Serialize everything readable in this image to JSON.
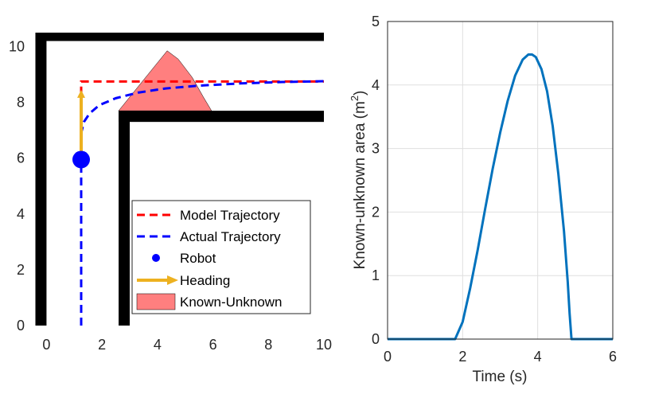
{
  "chart_data": [
    {
      "type": "line",
      "title": "",
      "xlabel": "",
      "ylabel": "",
      "xlim": [
        -0.5,
        10
      ],
      "ylim": [
        0,
        10.5
      ],
      "xticks": [
        "0",
        "2",
        "4",
        "6",
        "8",
        "10"
      ],
      "yticks": [
        "0",
        "2",
        "4",
        "6",
        "8",
        "10"
      ],
      "grid": false,
      "legend_position": "bottom-right",
      "walls": [
        {
          "name": "top-wall",
          "x": [
            -0.4,
            10
          ],
          "y": [
            10.2,
            10.5
          ]
        },
        {
          "name": "left-wall",
          "x": [
            -0.4,
            0
          ],
          "y": [
            0,
            10.5
          ]
        },
        {
          "name": "inner-top-wall",
          "x": [
            2.6,
            10
          ],
          "y": [
            7.3,
            7.7
          ]
        },
        {
          "name": "inner-left-wall",
          "x": [
            2.6,
            3.0
          ],
          "y": [
            0,
            7.7
          ]
        }
      ],
      "series": [
        {
          "name": "Model Trajectory",
          "color": "#ff0000",
          "style": "dashed",
          "points": [
            [
              1.25,
              6.0
            ],
            [
              1.25,
              8.75
            ],
            [
              10.0,
              8.75
            ]
          ]
        },
        {
          "name": "Actual Trajectory",
          "color": "#0000ff",
          "style": "dashed",
          "points": [
            [
              1.25,
              0
            ],
            [
              1.25,
              6.0
            ],
            [
              1.25,
              6.9
            ],
            [
              1.35,
              7.3
            ],
            [
              1.55,
              7.6
            ],
            [
              1.9,
              7.9
            ],
            [
              2.5,
              8.15
            ],
            [
              3.3,
              8.35
            ],
            [
              4.3,
              8.5
            ],
            [
              5.5,
              8.6
            ],
            [
              7.0,
              8.68
            ],
            [
              8.5,
              8.73
            ],
            [
              10.0,
              8.76
            ]
          ]
        },
        {
          "name": "Robot",
          "color": "#0000ff",
          "style": "marker",
          "points": [
            [
              1.25,
              5.95
            ]
          ]
        },
        {
          "name": "Heading",
          "color": "#edb120",
          "style": "arrow",
          "points": [
            [
              1.25,
              5.95
            ],
            [
              1.25,
              8.45
            ]
          ]
        },
        {
          "name": "Known-Unknown",
          "color": "#ff7f7f",
          "style": "area",
          "points": [
            [
              2.6,
              7.7
            ],
            [
              4.35,
              9.85
            ],
            [
              4.75,
              9.55
            ],
            [
              5.25,
              8.9
            ],
            [
              5.65,
              8.2
            ],
            [
              5.95,
              7.7
            ]
          ]
        }
      ]
    },
    {
      "type": "line",
      "title": "",
      "xlabel": "Time (s)",
      "ylabel_text": "Known-unknown area (m",
      "ylabel_sup": "2",
      "ylabel_close": ")",
      "xlim": [
        0,
        6
      ],
      "ylim": [
        0,
        5
      ],
      "xticks": [
        "0",
        "2",
        "4",
        "6"
      ],
      "yticks": [
        "0",
        "1",
        "2",
        "3",
        "4",
        "5"
      ],
      "grid": true,
      "series": [
        {
          "color": "#0072bd",
          "x": [
            0,
            0.5,
            1.0,
            1.5,
            1.8,
            2.0,
            2.2,
            2.4,
            2.6,
            2.8,
            3.0,
            3.2,
            3.4,
            3.6,
            3.75,
            3.85,
            3.95,
            4.1,
            4.25,
            4.4,
            4.55,
            4.7,
            4.8,
            4.85,
            4.9,
            5.2,
            5.6,
            6.0
          ],
          "y": [
            0,
            0,
            0,
            0,
            0,
            0.27,
            0.8,
            1.4,
            2.05,
            2.68,
            3.25,
            3.75,
            4.15,
            4.4,
            4.48,
            4.48,
            4.44,
            4.25,
            3.9,
            3.35,
            2.6,
            1.7,
            0.9,
            0.4,
            0,
            0,
            0,
            0
          ]
        }
      ]
    }
  ]
}
